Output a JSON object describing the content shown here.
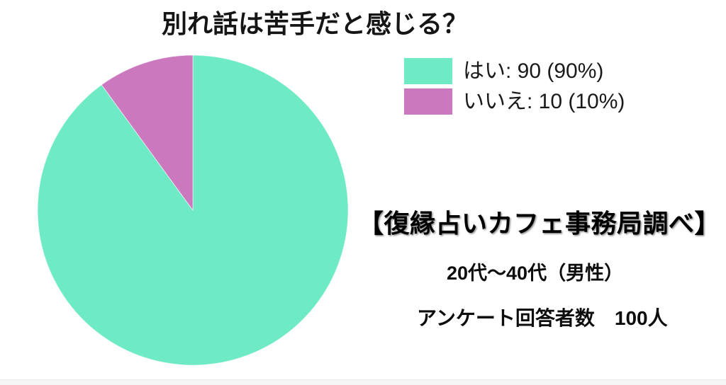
{
  "page": {
    "background": "#ffffff",
    "footer_strip_color": "#f5f5f6"
  },
  "chart_data": {
    "type": "pie",
    "title": "別れ話は苦手だと感じる？",
    "categories": [
      "はい",
      "いいえ"
    ],
    "values": [
      90,
      10
    ],
    "percentages": [
      "90%",
      "10%"
    ],
    "colors": [
      "#6eeac5",
      "#cb78be"
    ],
    "slice_border_color": "rgba(255,255,255,0.55)",
    "start_angle_deg": 0,
    "direction": "clockwise",
    "legend": {
      "position": "top-right",
      "entries": [
        {
          "label": "はい: 90 (90%)",
          "color": "#6eeac5"
        },
        {
          "label": "いいえ: 10 (10%)",
          "color": "#cb78be"
        }
      ]
    }
  },
  "annotations": {
    "source": "【復縁占いカフェ事務局調べ】",
    "audience": "20代〜40代（男性）",
    "respondents": "アンケート回答者数　100人"
  }
}
